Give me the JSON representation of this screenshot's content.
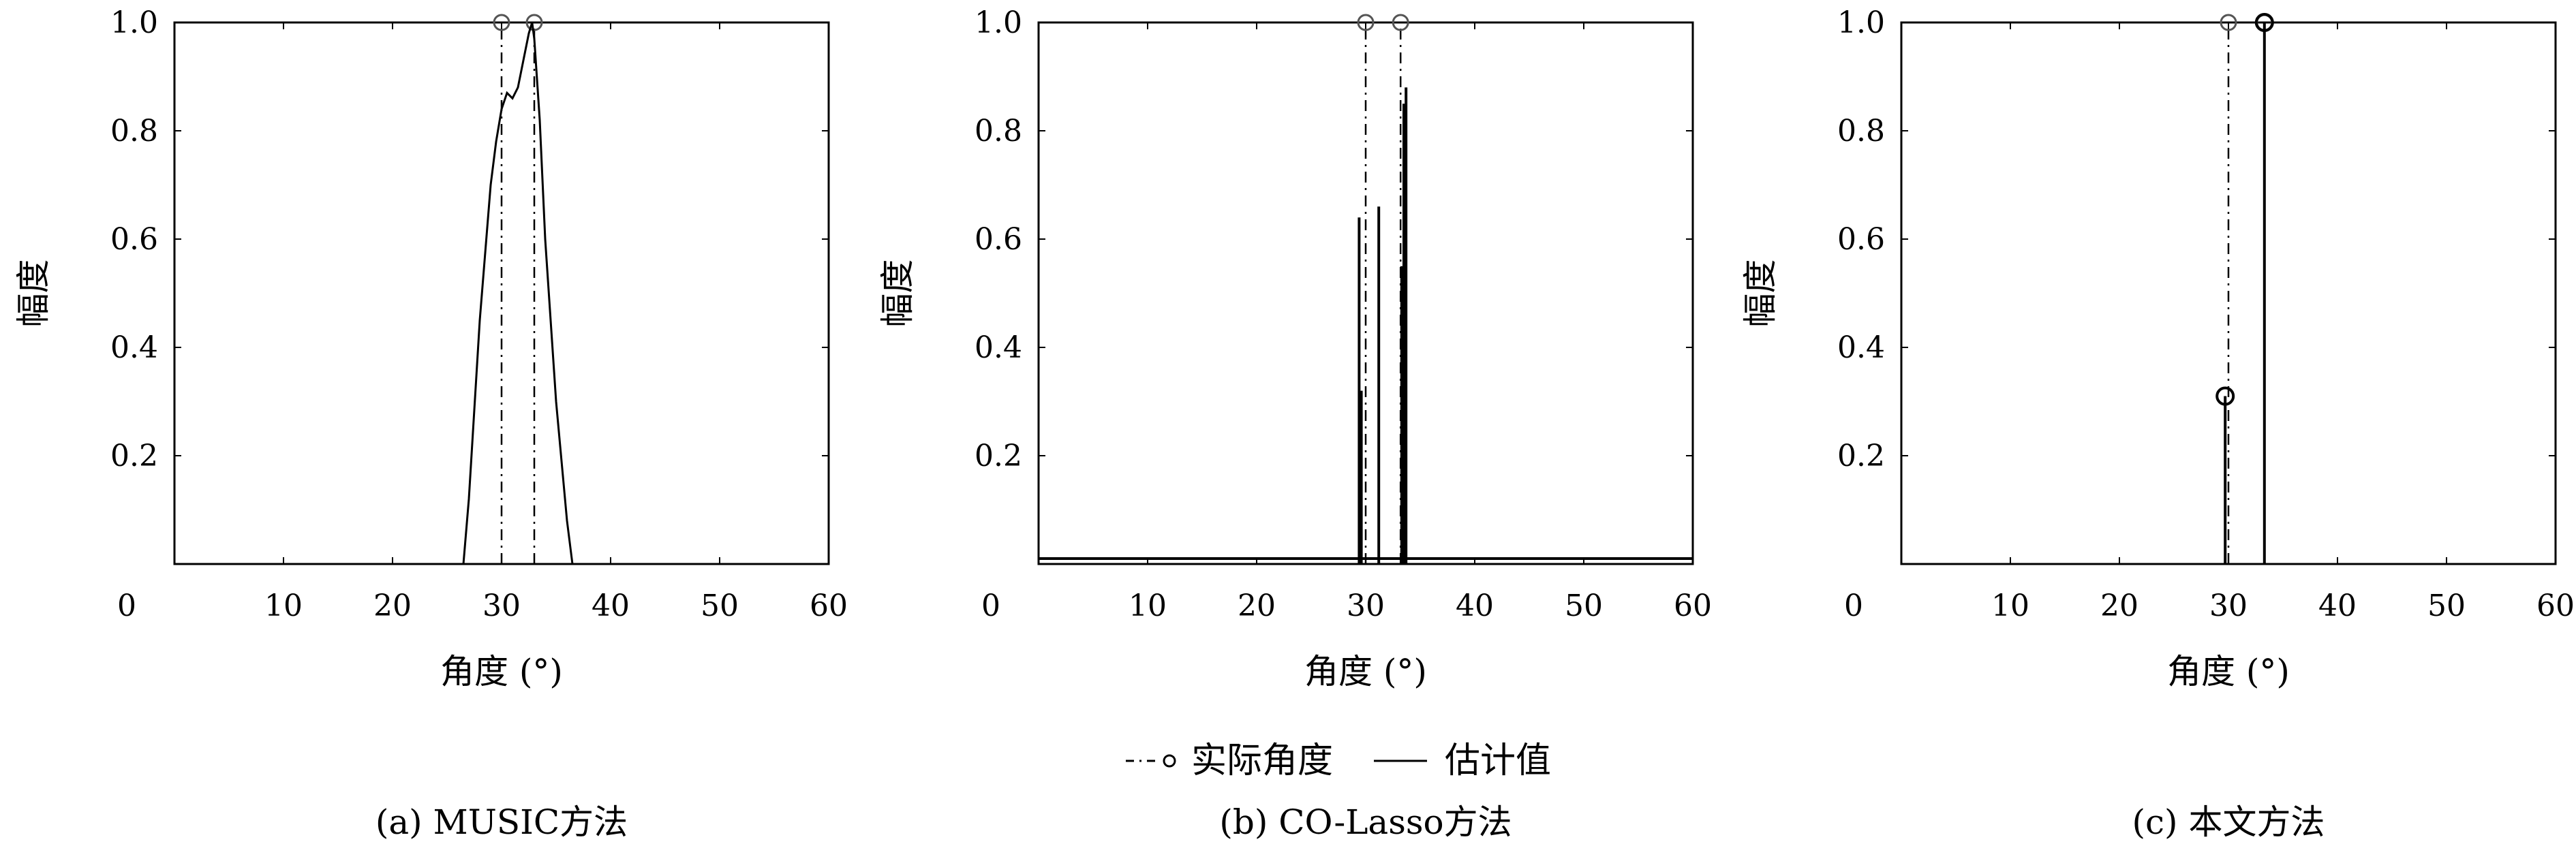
{
  "legend": {
    "actual_label": "实际角度",
    "estimate_label": "估计值"
  },
  "chart_data": [
    {
      "type": "line",
      "caption": "(a) MUSIC方法",
      "xlabel": "角度 (°)",
      "ylabel": "幅度",
      "xlim": [
        0,
        60
      ],
      "ylim": [
        0,
        1.0
      ],
      "x_ticks": [
        "0",
        "10",
        "20",
        "30",
        "40",
        "50",
        "60"
      ],
      "y_ticks": [
        "0.2",
        "0.4",
        "0.6",
        "0.8",
        "1.0"
      ],
      "grid": false,
      "actual_angles": [
        30,
        33
      ],
      "actual_amplitudes": [
        1.0,
        1.0
      ],
      "series": [
        {
          "role": "estimate",
          "x": [
            26.5,
            27,
            28,
            29,
            29.5,
            30,
            30.5,
            31,
            31.5,
            32,
            32.5,
            32.8,
            33,
            33.5,
            34,
            35,
            36,
            36.5
          ],
          "y": [
            0,
            0.12,
            0.45,
            0.7,
            0.78,
            0.84,
            0.87,
            0.86,
            0.88,
            0.93,
            0.98,
            1.0,
            0.97,
            0.82,
            0.6,
            0.3,
            0.08,
            0
          ]
        }
      ]
    },
    {
      "type": "stem",
      "caption": "(b) CO-Lasso方法",
      "xlabel": "角度 (°)",
      "ylabel": "幅度",
      "xlim": [
        0,
        60
      ],
      "ylim": [
        0,
        1.0
      ],
      "x_ticks": [
        "0",
        "10",
        "20",
        "30",
        "40",
        "50",
        "60"
      ],
      "y_ticks": [
        "0.2",
        "0.4",
        "0.6",
        "0.8",
        "1.0"
      ],
      "grid": false,
      "actual_angles": [
        30,
        33.2
      ],
      "actual_amplitudes": [
        1.0,
        1.0
      ],
      "series": [
        {
          "role": "estimate",
          "x": [
            29.4,
            29.6,
            31.2,
            33.3,
            33.5,
            33.7
          ],
          "y": [
            0.64,
            0.32,
            0.66,
            0.55,
            0.85,
            0.88
          ],
          "baseline_noise": 0.01
        }
      ]
    },
    {
      "type": "stem",
      "caption": "(c) 本文方法",
      "xlabel": "角度 (°)",
      "ylabel": "幅度",
      "xlim": [
        0,
        60
      ],
      "ylim": [
        0,
        1.0
      ],
      "x_ticks": [
        "0",
        "10",
        "20",
        "30",
        "40",
        "50",
        "60"
      ],
      "y_ticks": [
        "0.2",
        "0.4",
        "0.6",
        "0.8",
        "1.0"
      ],
      "grid": false,
      "actual_angles": [
        30,
        33.3
      ],
      "actual_amplitudes": [
        1.0,
        1.0
      ],
      "series": [
        {
          "role": "estimate",
          "x": [
            29.7,
            33.3
          ],
          "y": [
            0.31,
            1.0
          ]
        }
      ]
    }
  ]
}
